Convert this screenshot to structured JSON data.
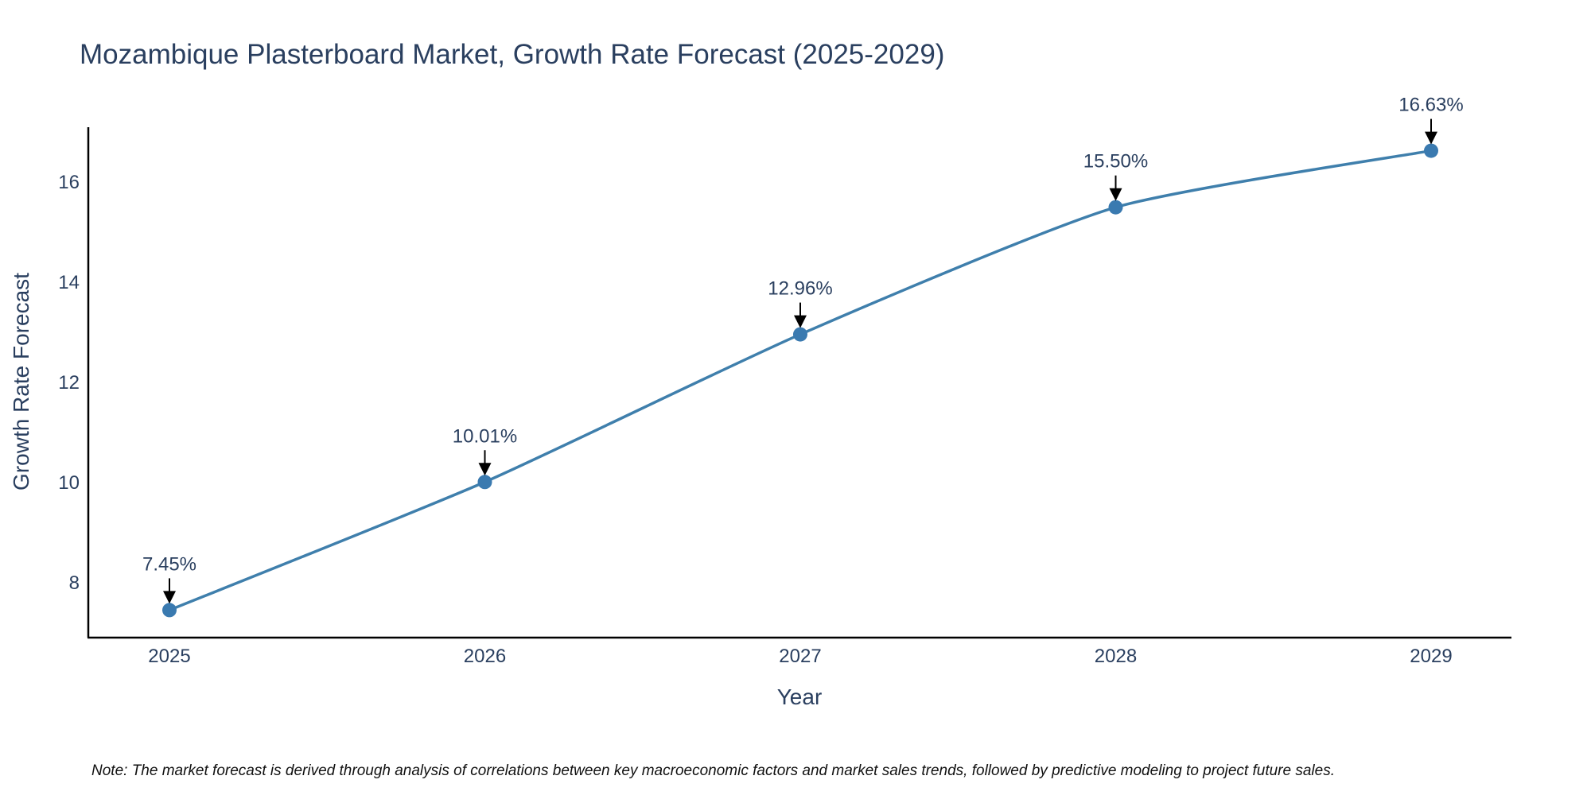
{
  "chart_data": {
    "type": "line",
    "title": "Mozambique Plasterboard Market, Growth Rate Forecast (2025-2029)",
    "xlabel": "Year",
    "ylabel": "Growth Rate Forecast",
    "categories": [
      "2025",
      "2026",
      "2027",
      "2028",
      "2029"
    ],
    "values": [
      7.45,
      10.01,
      12.96,
      15.5,
      16.63
    ],
    "data_labels": [
      "7.45%",
      "10.01%",
      "12.96%",
      "15.50%",
      "16.63%"
    ],
    "y_ticks": [
      8,
      10,
      12,
      14,
      16
    ],
    "ylim": [
      6.9,
      17.1
    ],
    "grid": false,
    "line_color": "#3f7fac",
    "marker_color": "#3a7ab0",
    "arrow_color": "#000000",
    "note": "Note: The market forecast is derived through analysis of correlations between key macroeconomic factors and market sales trends, followed by predictive modeling to project future sales."
  }
}
